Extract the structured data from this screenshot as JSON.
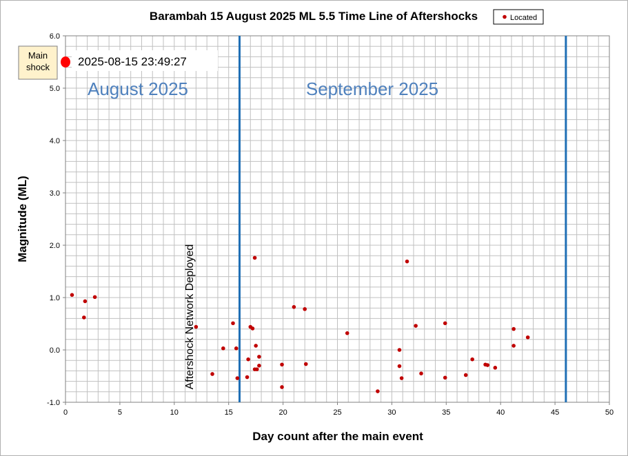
{
  "chart_data": {
    "type": "scatter",
    "title": "Barambah  15 August  2025 ML 5.5 Time Line of Aftershocks",
    "xlabel": "Day count after the main event",
    "ylabel": "Magnitude  (ML)",
    "xlim": [
      0,
      50
    ],
    "ylim": [
      -1.0,
      6.0
    ],
    "xticks": [
      0,
      5,
      10,
      15,
      20,
      25,
      30,
      35,
      40,
      45,
      50
    ],
    "yticks": [
      -1.0,
      0.0,
      1.0,
      2.0,
      3.0,
      4.0,
      5.0,
      6.0
    ],
    "ytick_labels": [
      "-1.0",
      "0.0",
      "1.0",
      "2.0",
      "3.0",
      "4.0",
      "5.0",
      "6.0"
    ],
    "grid": true,
    "legend": {
      "position": "top-right",
      "entries": [
        "Located"
      ]
    },
    "colors": {
      "points": "#c00000",
      "month_lines": "#1f6fb5",
      "month_text": "#4f81bd",
      "main_shock": "#ff0000",
      "grid": "#c0c0c0"
    },
    "series": [
      {
        "name": "Located",
        "points": [
          {
            "x": 0.6,
            "y": 1.05
          },
          {
            "x": 1.8,
            "y": 0.93
          },
          {
            "x": 1.7,
            "y": 0.62
          },
          {
            "x": 2.7,
            "y": 1.01
          },
          {
            "x": 12.0,
            "y": 0.44
          },
          {
            "x": 13.5,
            "y": -0.46
          },
          {
            "x": 14.5,
            "y": 0.03
          },
          {
            "x": 15.4,
            "y": 0.51
          },
          {
            "x": 15.7,
            "y": 0.03
          },
          {
            "x": 15.8,
            "y": -0.54
          },
          {
            "x": 16.7,
            "y": -0.52
          },
          {
            "x": 16.8,
            "y": -0.18
          },
          {
            "x": 17.0,
            "y": 0.44
          },
          {
            "x": 17.2,
            "y": 0.41
          },
          {
            "x": 17.4,
            "y": 1.76
          },
          {
            "x": 17.5,
            "y": 0.08
          },
          {
            "x": 17.4,
            "y": -0.37
          },
          {
            "x": 17.6,
            "y": -0.37
          },
          {
            "x": 17.8,
            "y": -0.3
          },
          {
            "x": 17.8,
            "y": -0.13
          },
          {
            "x": 19.9,
            "y": -0.28
          },
          {
            "x": 19.9,
            "y": -0.71
          },
          {
            "x": 21.0,
            "y": 0.82
          },
          {
            "x": 22.0,
            "y": 0.78
          },
          {
            "x": 22.1,
            "y": -0.27
          },
          {
            "x": 25.9,
            "y": 0.32
          },
          {
            "x": 28.7,
            "y": -0.79
          },
          {
            "x": 30.7,
            "y": 0.0
          },
          {
            "x": 30.7,
            "y": -0.31
          },
          {
            "x": 30.9,
            "y": -0.54
          },
          {
            "x": 31.4,
            "y": 1.69
          },
          {
            "x": 32.2,
            "y": 0.46
          },
          {
            "x": 32.7,
            "y": -0.45
          },
          {
            "x": 34.9,
            "y": 0.51
          },
          {
            "x": 34.9,
            "y": -0.53
          },
          {
            "x": 36.8,
            "y": -0.48
          },
          {
            "x": 37.4,
            "y": -0.18
          },
          {
            "x": 38.6,
            "y": -0.28
          },
          {
            "x": 38.8,
            "y": -0.29
          },
          {
            "x": 39.5,
            "y": -0.34
          },
          {
            "x": 41.2,
            "y": 0.4
          },
          {
            "x": 41.2,
            "y": 0.08
          },
          {
            "x": 42.5,
            "y": 0.24
          }
        ]
      }
    ],
    "month_boundaries": [
      16.0,
      46.0
    ],
    "month_labels": [
      {
        "text": "August  2025"
      },
      {
        "text": "September   2025"
      }
    ],
    "main_shock": {
      "label_line1": "Main",
      "label_line2": "shock",
      "timestamp": "2025-08-15 23:49:27",
      "x": 0.0,
      "y": 5.5
    },
    "annotation": {
      "text": "Aftershock Network Deployed"
    }
  }
}
